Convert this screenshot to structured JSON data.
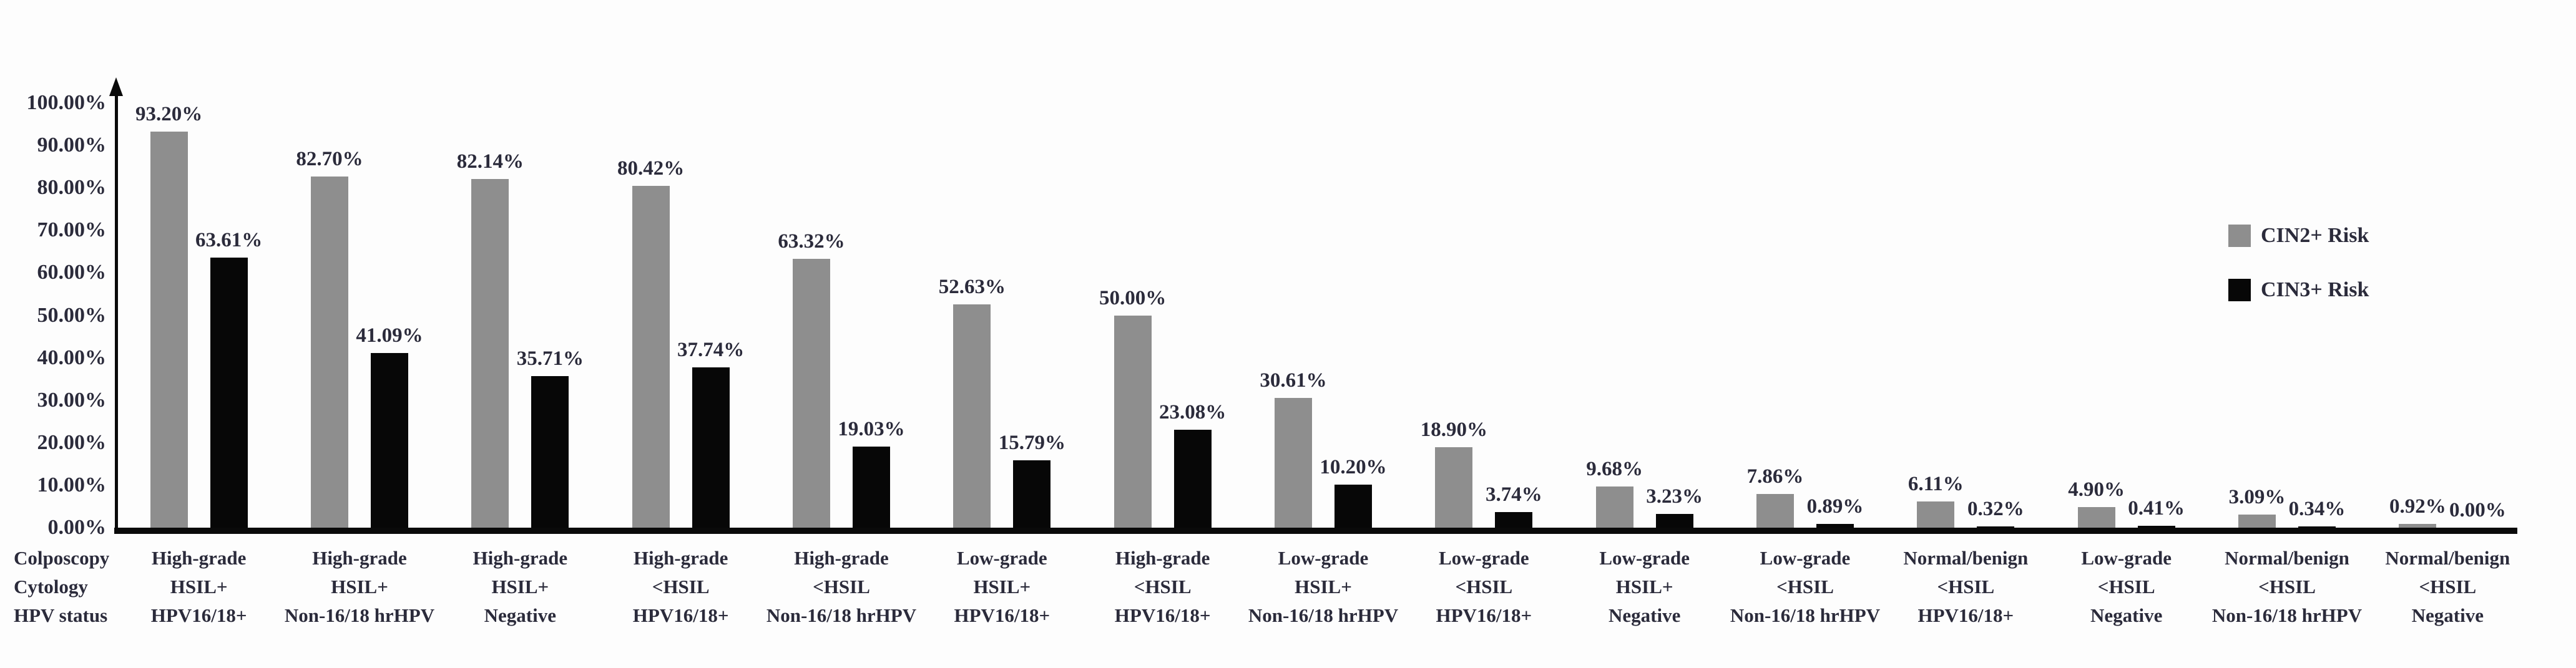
{
  "chart_data": {
    "type": "bar",
    "title": "",
    "grid": false,
    "y_axis": {
      "min": 0,
      "max": 100,
      "ticks": [
        "100.00%",
        "90.00%",
        "80.00%",
        "70.00%",
        "60.00%",
        "50.00%",
        "40.00%",
        "30.00%",
        "20.00%",
        "10.00%",
        "0.00%"
      ]
    },
    "x_axis": {
      "header_lines": [
        "Colposcopy",
        "Cytology",
        "HPV status"
      ]
    },
    "legend": {
      "position": "right",
      "entries": [
        {
          "label": "CIN2+ Risk",
          "color": "#8e8e8e"
        },
        {
          "label": "CIN3+ Risk",
          "color": "#070707"
        }
      ]
    },
    "categories": [
      {
        "lines": [
          "High-grade",
          "HSIL+",
          "HPV16/18+"
        ]
      },
      {
        "lines": [
          "High-grade",
          "HSIL+",
          "Non-16/18 hrHPV"
        ]
      },
      {
        "lines": [
          "High-grade",
          "HSIL+",
          "Negative"
        ]
      },
      {
        "lines": [
          "High-grade",
          "<HSIL",
          "HPV16/18+"
        ]
      },
      {
        "lines": [
          "High-grade",
          "<HSIL",
          "Non-16/18 hrHPV"
        ]
      },
      {
        "lines": [
          "Low-grade",
          "HSIL+",
          "HPV16/18+"
        ]
      },
      {
        "lines": [
          "High-grade",
          "<HSIL",
          "HPV16/18+"
        ]
      },
      {
        "lines": [
          "Low-grade",
          "HSIL+",
          "Non-16/18 hrHPV"
        ]
      },
      {
        "lines": [
          "Low-grade",
          "<HSIL",
          "HPV16/18+"
        ]
      },
      {
        "lines": [
          "Low-grade",
          "HSIL+",
          "Negative"
        ]
      },
      {
        "lines": [
          "Low-grade",
          "<HSIL",
          "Non-16/18 hrHPV"
        ]
      },
      {
        "lines": [
          "Normal/benign",
          "<HSIL",
          "HPV16/18+"
        ]
      },
      {
        "lines": [
          "Low-grade",
          "<HSIL",
          "Negative"
        ]
      },
      {
        "lines": [
          "Normal/benign",
          "<HSIL",
          "Non-16/18 hrHPV"
        ]
      },
      {
        "lines": [
          "Normal/benign",
          "<HSIL",
          "Negative"
        ]
      }
    ],
    "series": [
      {
        "name": "CIN2+ Risk",
        "color": "#8e8e8e",
        "values": [
          93.2,
          82.7,
          82.14,
          80.42,
          63.32,
          52.63,
          50.0,
          30.61,
          18.9,
          9.68,
          7.86,
          6.11,
          4.9,
          3.09,
          0.92
        ],
        "labels": [
          "93.20%",
          "82.70%",
          "82.14%",
          "80.42%",
          "63.32%",
          "52.63%",
          "50.00%",
          "30.61%",
          "18.90%",
          "9.68%",
          "7.86%",
          "6.11%",
          "4.90%",
          "3.09%",
          "0.92%"
        ]
      },
      {
        "name": "CIN3+ Risk",
        "color": "#070707",
        "values": [
          63.61,
          41.09,
          35.71,
          37.74,
          19.03,
          15.79,
          23.08,
          10.2,
          3.74,
          3.23,
          0.89,
          0.32,
          0.41,
          0.34,
          0.0
        ],
        "labels": [
          "63.61%",
          "41.09%",
          "35.71%",
          "37.74%",
          "19.03%",
          "15.79%",
          "23.08%",
          "10.20%",
          "3.74%",
          "3.23%",
          "0.89%",
          "0.32%",
          "0.41%",
          "0.34%",
          "0.00%"
        ]
      }
    ]
  }
}
